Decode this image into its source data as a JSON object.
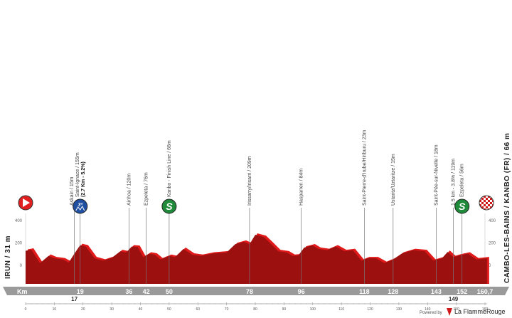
{
  "start": {
    "name": "IRUN / 31 m",
    "icon": "start-play-icon"
  },
  "finish": {
    "name": "CAMBO-LES-BAINS / KANBO (FR) / 66 m",
    "icon": "finish-checkered-flag-icon"
  },
  "colors": {
    "profile": "#9c1010",
    "profile_edge": "#e01a1a",
    "km_bar": "#9a9a9a",
    "kom": "#1f4fa0",
    "sprint": "#1e8a3a",
    "start": "#e02020"
  },
  "km_label": "Km",
  "waypoints": [
    {
      "km": 17,
      "label": "Askain / 15m",
      "km_text": "17"
    },
    {
      "km": 19,
      "label": "Saint-Ignace / 155m",
      "sub": "(2.7 Km - 5.2%)",
      "km_text": "19",
      "icon": "kom-3rd-category-icon",
      "icon_text": "3ª"
    },
    {
      "km": 36,
      "label": "Ainhoa / 120m",
      "km_text": "36"
    },
    {
      "km": 42,
      "label": "Ezpeleta / 76m",
      "km_text": "42"
    },
    {
      "km": 50,
      "label": "Kanbo - Finish Line / 66m",
      "km_text": "50",
      "icon": "sprint-icon",
      "icon_text": "S"
    },
    {
      "km": 78,
      "label": "Irissarry/Irisarri / 209m",
      "km_text": "78"
    },
    {
      "km": 96,
      "label": "Hasparren / 84m",
      "km_text": "96"
    },
    {
      "km": 118,
      "label": "Saint-Pierre-d'Irube/Hiriburu / 23m",
      "km_text": "118"
    },
    {
      "km": 128,
      "label": "Ustaritz/Uztaritze / 15m",
      "km_text": "128"
    },
    {
      "km": 143,
      "label": "Saint-Pée-sur-Nivelle / 18m",
      "km_text": "143"
    },
    {
      "km": 149,
      "label": "1.5 km - 3.8% / 119m",
      "km_text": "149"
    },
    {
      "km": 152,
      "label": "Ezpeleta / 56m",
      "km_text": "152",
      "icon": "sprint-icon",
      "icon_text": "S"
    }
  ],
  "total_km_text": "160,7",
  "footer": {
    "powered_by": "Powered by",
    "brand": "La FlammeRouge"
  },
  "chart_data": {
    "type": "area",
    "xlabel": "Km",
    "xlim": [
      0,
      160.7
    ],
    "ylim": [
      -150,
      400
    ],
    "x_ticks": [
      0,
      10,
      20,
      30,
      40,
      50,
      60,
      70,
      80,
      90,
      100,
      110,
      120,
      130,
      140,
      150,
      160
    ],
    "y_ticks": [
      0,
      200,
      400
    ],
    "grid": false,
    "x": [
      0,
      2,
      5,
      8,
      10,
      13,
      15,
      17,
      19,
      21,
      24,
      27,
      30,
      33,
      35,
      37,
      39,
      41,
      43,
      45,
      47,
      50,
      52,
      55,
      58,
      61,
      65,
      70,
      73,
      76,
      78,
      80,
      83,
      86,
      88,
      91,
      93,
      95,
      97,
      100,
      102,
      105,
      108,
      111,
      114,
      117,
      119,
      122,
      125,
      128,
      131,
      135,
      139,
      142,
      145,
      147,
      149,
      151,
      154,
      157,
      160.7
    ],
    "y": [
      130,
      140,
      20,
      85,
      63,
      52,
      25,
      105,
      180,
      168,
      63,
      42,
      67,
      126,
      115,
      168,
      164,
      73,
      105,
      95,
      52,
      84,
      73,
      147,
      95,
      84,
      105,
      115,
      189,
      210,
      189,
      273,
      252,
      178,
      126,
      115,
      84,
      88,
      158,
      178,
      147,
      136,
      168,
      126,
      136,
      42,
      63,
      63,
      21,
      52,
      105,
      136,
      126,
      42,
      63,
      120,
      73,
      88,
      105,
      52,
      63
    ]
  }
}
